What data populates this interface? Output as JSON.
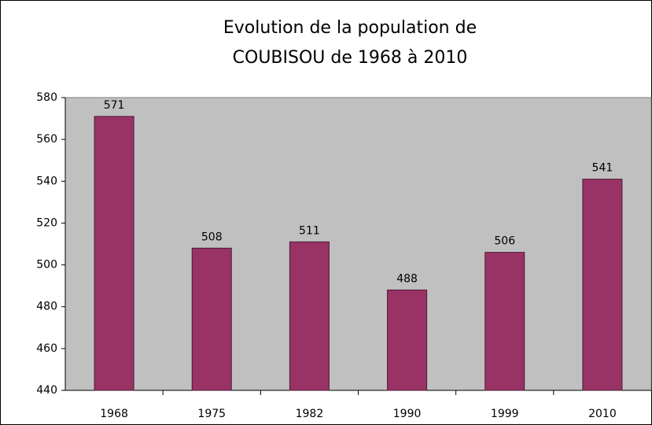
{
  "chart_data": {
    "type": "bar",
    "title": [
      "Evolution de la population de",
      "COUBISOU de 1968 à 2010"
    ],
    "categories": [
      "1968",
      "1975",
      "1982",
      "1990",
      "1999",
      "2010"
    ],
    "values": [
      571,
      508,
      511,
      488,
      506,
      541
    ],
    "color": "#993366",
    "ylim": [
      440,
      580
    ],
    "yticks": [
      440,
      460,
      480,
      500,
      520,
      540,
      560,
      580
    ],
    "grid": false
  }
}
